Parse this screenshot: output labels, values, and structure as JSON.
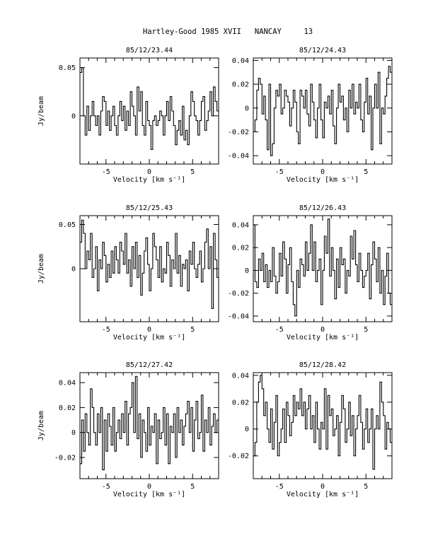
{
  "page_title": "Hartley-Good 1985 XVII   NANCAY     13",
  "chart_data": [
    {
      "type": "line",
      "title": "85/12/23.44",
      "xlabel": "Velocity [km s⁻¹]",
      "ylabel": "Jy/beam",
      "xlim": [
        -8,
        8
      ],
      "ylim": [
        -0.05,
        0.06
      ],
      "xticks": [
        -5,
        0,
        5
      ],
      "yticks": [
        0,
        0.05
      ],
      "ytick_labels": [
        "0",
        "0.05"
      ],
      "x": [
        -8.0,
        -7.8,
        -7.6,
        -7.4,
        -7.2,
        -7.0,
        -6.8,
        -6.6,
        -6.4,
        -6.2,
        -6.0,
        -5.8,
        -5.6,
        -5.4,
        -5.2,
        -5.0,
        -4.8,
        -4.6,
        -4.4,
        -4.2,
        -4.0,
        -3.8,
        -3.6,
        -3.4,
        -3.2,
        -3.0,
        -2.8,
        -2.6,
        -2.4,
        -2.2,
        -2.0,
        -1.8,
        -1.6,
        -1.4,
        -1.2,
        -1.0,
        -0.8,
        -0.6,
        -0.4,
        -0.2,
        0.0,
        0.2,
        0.4,
        0.6,
        0.8,
        1.0,
        1.2,
        1.4,
        1.6,
        1.8,
        2.0,
        2.2,
        2.4,
        2.6,
        2.8,
        3.0,
        3.2,
        3.4,
        3.6,
        3.8,
        4.0,
        4.2,
        4.4,
        4.6,
        4.8,
        5.0,
        5.2,
        5.4,
        5.6,
        5.8,
        6.0,
        6.2,
        6.4,
        6.6,
        6.8,
        7.0,
        7.2,
        7.4,
        7.6,
        7.8
      ],
      "y": [
        0.045,
        0.05,
        0.0,
        -0.02,
        0.01,
        -0.015,
        0.0,
        0.015,
        0.0,
        -0.01,
        0.0,
        -0.02,
        0.005,
        0.02,
        0.015,
        -0.01,
        0.005,
        -0.015,
        0.0,
        0.01,
        -0.01,
        -0.02,
        0.0,
        0.015,
        -0.005,
        0.01,
        -0.015,
        0.005,
        -0.01,
        0.025,
        0.01,
        0.0,
        -0.02,
        0.03,
        0.005,
        0.025,
        -0.01,
        -0.02,
        0.015,
        -0.005,
        -0.01,
        -0.035,
        -0.005,
        0.0,
        -0.01,
        -0.005,
        0.005,
        0.0,
        -0.02,
        0.0,
        0.015,
        -0.005,
        0.02,
        0.005,
        -0.01,
        -0.03,
        -0.015,
        -0.005,
        -0.02,
        0.01,
        -0.025,
        -0.015,
        -0.03,
        0.0,
        0.025,
        0.015,
        0.0,
        -0.005,
        -0.02,
        -0.005,
        0.015,
        0.02,
        -0.015,
        -0.005,
        0.005,
        0.025,
        0.0,
        0.03,
        0.015,
        0.005
      ]
    },
    {
      "type": "line",
      "title": "85/12/24.43",
      "xlabel": "Velocity [km s⁻¹]",
      "ylabel": "",
      "xlim": [
        -8,
        8
      ],
      "ylim": [
        -0.047,
        0.042
      ],
      "xticks": [
        -5,
        0,
        5
      ],
      "yticks": [
        -0.04,
        -0.02,
        0,
        0.02,
        0.04
      ],
      "ytick_labels": [
        "-0.04",
        "-0.02",
        "0",
        "0.02",
        "0.04"
      ],
      "x": [
        -8.0,
        -7.8,
        -7.6,
        -7.4,
        -7.2,
        -7.0,
        -6.8,
        -6.6,
        -6.4,
        -6.2,
        -6.0,
        -5.8,
        -5.6,
        -5.4,
        -5.2,
        -5.0,
        -4.8,
        -4.6,
        -4.4,
        -4.2,
        -4.0,
        -3.8,
        -3.6,
        -3.4,
        -3.2,
        -3.0,
        -2.8,
        -2.6,
        -2.4,
        -2.2,
        -2.0,
        -1.8,
        -1.6,
        -1.4,
        -1.2,
        -1.0,
        -0.8,
        -0.6,
        -0.4,
        -0.2,
        0.0,
        0.2,
        0.4,
        0.6,
        0.8,
        1.0,
        1.2,
        1.4,
        1.6,
        1.8,
        2.0,
        2.2,
        2.4,
        2.6,
        2.8,
        3.0,
        3.2,
        3.4,
        3.6,
        3.8,
        4.0,
        4.2,
        4.4,
        4.6,
        4.8,
        5.0,
        5.2,
        5.4,
        5.6,
        5.8,
        6.0,
        6.2,
        6.4,
        6.6,
        6.8,
        7.0,
        7.2,
        7.4,
        7.6,
        7.8
      ],
      "y": [
        -0.02,
        -0.01,
        0.015,
        0.025,
        0.02,
        -0.005,
        0.01,
        -0.01,
        -0.035,
        0.02,
        -0.04,
        -0.03,
        0.0,
        0.015,
        0.01,
        0.02,
        -0.005,
        0.0,
        0.015,
        0.01,
        0.005,
        -0.015,
        0.0,
        0.015,
        0.005,
        -0.02,
        -0.03,
        0.015,
        0.01,
        0.0,
        0.015,
        -0.005,
        -0.015,
        0.02,
        0.005,
        -0.01,
        -0.025,
        0.0,
        0.02,
        -0.01,
        -0.025,
        0.005,
        0.0,
        0.01,
        -0.005,
        0.015,
        -0.015,
        -0.03,
        0.0,
        0.02,
        0.005,
        0.01,
        -0.01,
        0.0,
        -0.02,
        0.015,
        0.0,
        0.02,
        -0.005,
        0.005,
        0.0,
        0.02,
        -0.01,
        -0.02,
        0.005,
        0.025,
        -0.005,
        0.01,
        -0.035,
        0.0,
        0.02,
        0.0,
        0.03,
        -0.03,
        0.0,
        -0.005,
        0.01,
        0.025,
        0.035,
        0.03
      ]
    },
    {
      "type": "line",
      "title": "85/12/25.43",
      "xlabel": "Velocity [km s⁻¹]",
      "ylabel": "Jy/beam",
      "xlim": [
        -8,
        8
      ],
      "ylim": [
        -0.06,
        0.06
      ],
      "xticks": [
        -5,
        0,
        5
      ],
      "yticks": [
        0,
        0.05
      ],
      "ytick_labels": [
        "0",
        "0.05"
      ],
      "x": [
        -8.0,
        -7.8,
        -7.6,
        -7.4,
        -7.2,
        -7.0,
        -6.8,
        -6.6,
        -6.4,
        -6.2,
        -6.0,
        -5.8,
        -5.6,
        -5.4,
        -5.2,
        -5.0,
        -4.8,
        -4.6,
        -4.4,
        -4.2,
        -4.0,
        -3.8,
        -3.6,
        -3.4,
        -3.2,
        -3.0,
        -2.8,
        -2.6,
        -2.4,
        -2.2,
        -2.0,
        -1.8,
        -1.6,
        -1.4,
        -1.2,
        -1.0,
        -0.8,
        -0.6,
        -0.4,
        -0.2,
        0.0,
        0.2,
        0.4,
        0.6,
        0.8,
        1.0,
        1.2,
        1.4,
        1.6,
        1.8,
        2.0,
        2.2,
        2.4,
        2.6,
        2.8,
        3.0,
        3.2,
        3.4,
        3.6,
        3.8,
        4.0,
        4.2,
        4.4,
        4.6,
        4.8,
        5.0,
        5.2,
        5.4,
        5.6,
        5.8,
        6.0,
        6.2,
        6.4,
        6.6,
        6.8,
        7.0,
        7.2,
        7.4,
        7.6,
        7.8
      ],
      "y": [
        0.03,
        0.055,
        0.04,
        0.0,
        0.02,
        0.01,
        0.04,
        -0.01,
        0.0,
        0.025,
        -0.025,
        0.01,
        0.0,
        0.03,
        0.015,
        -0.015,
        0.005,
        -0.01,
        0.02,
        -0.005,
        0.025,
        0.01,
        -0.005,
        0.03,
        0.02,
        0.005,
        0.04,
        -0.005,
        0.01,
        -0.02,
        0.025,
        0.0,
        0.03,
        -0.01,
        0.015,
        -0.03,
        -0.005,
        0.02,
        0.035,
        0.005,
        -0.025,
        0.0,
        0.04,
        0.025,
        0.01,
        -0.01,
        0.025,
        -0.015,
        0.0,
        -0.005,
        0.03,
        0.015,
        -0.02,
        0.01,
        0.0,
        0.04,
        -0.005,
        0.015,
        -0.02,
        0.005,
        0.0,
        0.01,
        -0.025,
        0.02,
        0.005,
        0.03,
        0.0,
        -0.01,
        0.005,
        0.02,
        -0.015,
        0.0,
        0.03,
        0.045,
        0.0,
        0.025,
        -0.045,
        0.04,
        0.01,
        -0.01
      ]
    },
    {
      "type": "line",
      "title": "85/12/26.43",
      "xlabel": "Velocity [km s⁻¹]",
      "ylabel": "",
      "xlim": [
        -8,
        8
      ],
      "ylim": [
        -0.045,
        0.048
      ],
      "xticks": [
        -5,
        0,
        5
      ],
      "yticks": [
        -0.04,
        -0.02,
        0,
        0.02,
        0.04
      ],
      "ytick_labels": [
        "-0.04",
        "-0.02",
        "0",
        "0.02",
        "0.04"
      ],
      "x": [
        -8.0,
        -7.8,
        -7.6,
        -7.4,
        -7.2,
        -7.0,
        -6.8,
        -6.6,
        -6.4,
        -6.2,
        -6.0,
        -5.8,
        -5.6,
        -5.4,
        -5.2,
        -5.0,
        -4.8,
        -4.6,
        -4.4,
        -4.2,
        -4.0,
        -3.8,
        -3.6,
        -3.4,
        -3.2,
        -3.0,
        -2.8,
        -2.6,
        -2.4,
        -2.2,
        -2.0,
        -1.8,
        -1.6,
        -1.4,
        -1.2,
        -1.0,
        -0.8,
        -0.6,
        -0.4,
        -0.2,
        0.0,
        0.2,
        0.4,
        0.6,
        0.8,
        1.0,
        1.2,
        1.4,
        1.6,
        1.8,
        2.0,
        2.2,
        2.4,
        2.6,
        2.8,
        3.0,
        3.2,
        3.4,
        3.6,
        3.8,
        4.0,
        4.2,
        4.4,
        4.6,
        4.8,
        5.0,
        5.2,
        5.4,
        5.6,
        5.8,
        6.0,
        6.2,
        6.4,
        6.6,
        6.8,
        7.0,
        7.2,
        7.4,
        7.6,
        7.8
      ],
      "y": [
        0.04,
        -0.01,
        -0.015,
        0.01,
        0.0,
        0.015,
        -0.01,
        0.005,
        -0.015,
        0.0,
        -0.01,
        0.02,
        -0.005,
        -0.02,
        -0.01,
        0.015,
        -0.005,
        0.025,
        0.01,
        -0.02,
        0.005,
        0.02,
        -0.01,
        -0.03,
        -0.04,
        0.0,
        -0.015,
        0.01,
        0.005,
        -0.005,
        0.025,
        0.0,
        0.015,
        0.04,
        0.0,
        0.025,
        -0.01,
        0.0,
        0.01,
        -0.03,
        0.0,
        0.03,
        0.015,
        0.045,
        -0.005,
        0.02,
        0.0,
        -0.025,
        0.01,
        -0.015,
        0.02,
        0.005,
        0.01,
        -0.02,
        0.0,
        -0.005,
        0.03,
        0.01,
        0.035,
        0.005,
        -0.01,
        0.015,
        0.0,
        -0.015,
        -0.005,
        0.0,
        0.015,
        -0.025,
        0.005,
        0.025,
        0.01,
        -0.01,
        0.02,
        -0.02,
        0.0,
        -0.03,
        -0.005,
        0.015,
        -0.02,
        -0.03
      ]
    },
    {
      "type": "line",
      "title": "85/12/27.42",
      "xlabel": "Velocity [km s⁻¹]",
      "ylabel": "Jy/beam",
      "xlim": [
        -8,
        8
      ],
      "ylim": [
        -0.037,
        0.048
      ],
      "xticks": [
        -5,
        0,
        5
      ],
      "yticks": [
        -0.02,
        0,
        0.02,
        0.04
      ],
      "ytick_labels": [
        "-0.02",
        "0",
        "0.02",
        "0.04"
      ],
      "x": [
        -8.0,
        -7.8,
        -7.6,
        -7.4,
        -7.2,
        -7.0,
        -6.8,
        -6.6,
        -6.4,
        -6.2,
        -6.0,
        -5.8,
        -5.6,
        -5.4,
        -5.2,
        -5.0,
        -4.8,
        -4.6,
        -4.4,
        -4.2,
        -4.0,
        -3.8,
        -3.6,
        -3.4,
        -3.2,
        -3.0,
        -2.8,
        -2.6,
        -2.4,
        -2.2,
        -2.0,
        -1.8,
        -1.6,
        -1.4,
        -1.2,
        -1.0,
        -0.8,
        -0.6,
        -0.4,
        -0.2,
        0.0,
        0.2,
        0.4,
        0.6,
        0.8,
        1.0,
        1.2,
        1.4,
        1.6,
        1.8,
        2.0,
        2.2,
        2.4,
        2.6,
        2.8,
        3.0,
        3.2,
        3.4,
        3.6,
        3.8,
        4.0,
        4.2,
        4.4,
        4.6,
        4.8,
        5.0,
        5.2,
        5.4,
        5.6,
        5.8,
        6.0,
        6.2,
        6.4,
        6.6,
        6.8,
        7.0,
        7.2,
        7.4,
        7.6,
        7.8
      ],
      "y": [
        -0.025,
        0.01,
        -0.015,
        0.015,
        0.0,
        -0.01,
        0.035,
        0.02,
        0.0,
        -0.01,
        0.015,
        0.0,
        0.02,
        -0.03,
        0.01,
        -0.015,
        0.015,
        0.005,
        -0.01,
        0.02,
        -0.015,
        0.0,
        0.01,
        -0.005,
        0.015,
        0.0,
        0.025,
        -0.01,
        0.015,
        0.02,
        0.04,
        0.0,
        0.045,
        -0.005,
        0.015,
        -0.02,
        0.01,
        0.0,
        -0.015,
        0.02,
        -0.01,
        0.005,
        0.0,
        0.015,
        -0.025,
        0.01,
        -0.005,
        0.0,
        0.02,
        -0.01,
        0.015,
        -0.025,
        0.005,
        0.0,
        0.015,
        -0.02,
        0.02,
        0.0,
        0.01,
        -0.01,
        0.005,
        0.015,
        0.025,
        0.0,
        0.02,
        -0.015,
        0.01,
        0.025,
        -0.005,
        0.0,
        0.03,
        -0.015,
        0.01,
        0.0,
        0.02,
        -0.01,
        0.005,
        0.015,
        0.0,
        0.01
      ]
    },
    {
      "type": "line",
      "title": "85/12/28.42",
      "xlabel": "Velocity [km s⁻¹]",
      "ylabel": "",
      "xlim": [
        -8,
        8
      ],
      "ylim": [
        -0.037,
        0.042
      ],
      "xticks": [
        -5,
        0,
        5
      ],
      "yticks": [
        -0.02,
        0,
        0.02,
        0.04
      ],
      "ytick_labels": [
        "-0.02",
        "0",
        "0.02",
        "0.04"
      ],
      "x": [
        -8.0,
        -7.8,
        -7.6,
        -7.4,
        -7.2,
        -7.0,
        -6.8,
        -6.6,
        -6.4,
        -6.2,
        -6.0,
        -5.8,
        -5.6,
        -5.4,
        -5.2,
        -5.0,
        -4.8,
        -4.6,
        -4.4,
        -4.2,
        -4.0,
        -3.8,
        -3.6,
        -3.4,
        -3.2,
        -3.0,
        -2.8,
        -2.6,
        -2.4,
        -2.2,
        -2.0,
        -1.8,
        -1.6,
        -1.4,
        -1.2,
        -1.0,
        -0.8,
        -0.6,
        -0.4,
        -0.2,
        0.0,
        0.2,
        0.4,
        0.6,
        0.8,
        1.0,
        1.2,
        1.4,
        1.6,
        1.8,
        2.0,
        2.2,
        2.4,
        2.6,
        2.8,
        3.0,
        3.2,
        3.4,
        3.6,
        3.8,
        4.0,
        4.2,
        4.4,
        4.6,
        4.8,
        5.0,
        5.2,
        5.4,
        5.6,
        5.8,
        6.0,
        6.2,
        6.4,
        6.6,
        6.8,
        7.0,
        7.2,
        7.4,
        7.6,
        7.8
      ],
      "y": [
        -0.02,
        -0.01,
        0.02,
        0.035,
        0.04,
        0.03,
        0.01,
        0.02,
        0.0,
        -0.01,
        0.015,
        -0.015,
        0.005,
        0.025,
        -0.02,
        -0.01,
        0.0,
        0.015,
        -0.01,
        0.02,
        0.01,
        -0.005,
        0.005,
        0.025,
        0.01,
        0.02,
        0.015,
        0.03,
        0.01,
        0.02,
        0.0,
        0.015,
        0.025,
        0.0,
        0.01,
        -0.01,
        0.02,
        0.0,
        -0.015,
        0.005,
        0.0,
        0.03,
        -0.015,
        0.025,
        0.01,
        0.015,
        -0.005,
        0.0,
        0.01,
        -0.02,
        0.005,
        0.025,
        0.015,
        -0.01,
        0.0,
        0.02,
        -0.005,
        0.01,
        -0.02,
        0.0,
        0.01,
        0.025,
        0.005,
        -0.015,
        0.0,
        0.015,
        -0.01,
        0.0,
        0.015,
        -0.03,
        0.0,
        0.01,
        0.0,
        0.035,
        0.02,
        0.01,
        -0.015,
        0.005,
        0.0,
        -0.01
      ]
    }
  ]
}
